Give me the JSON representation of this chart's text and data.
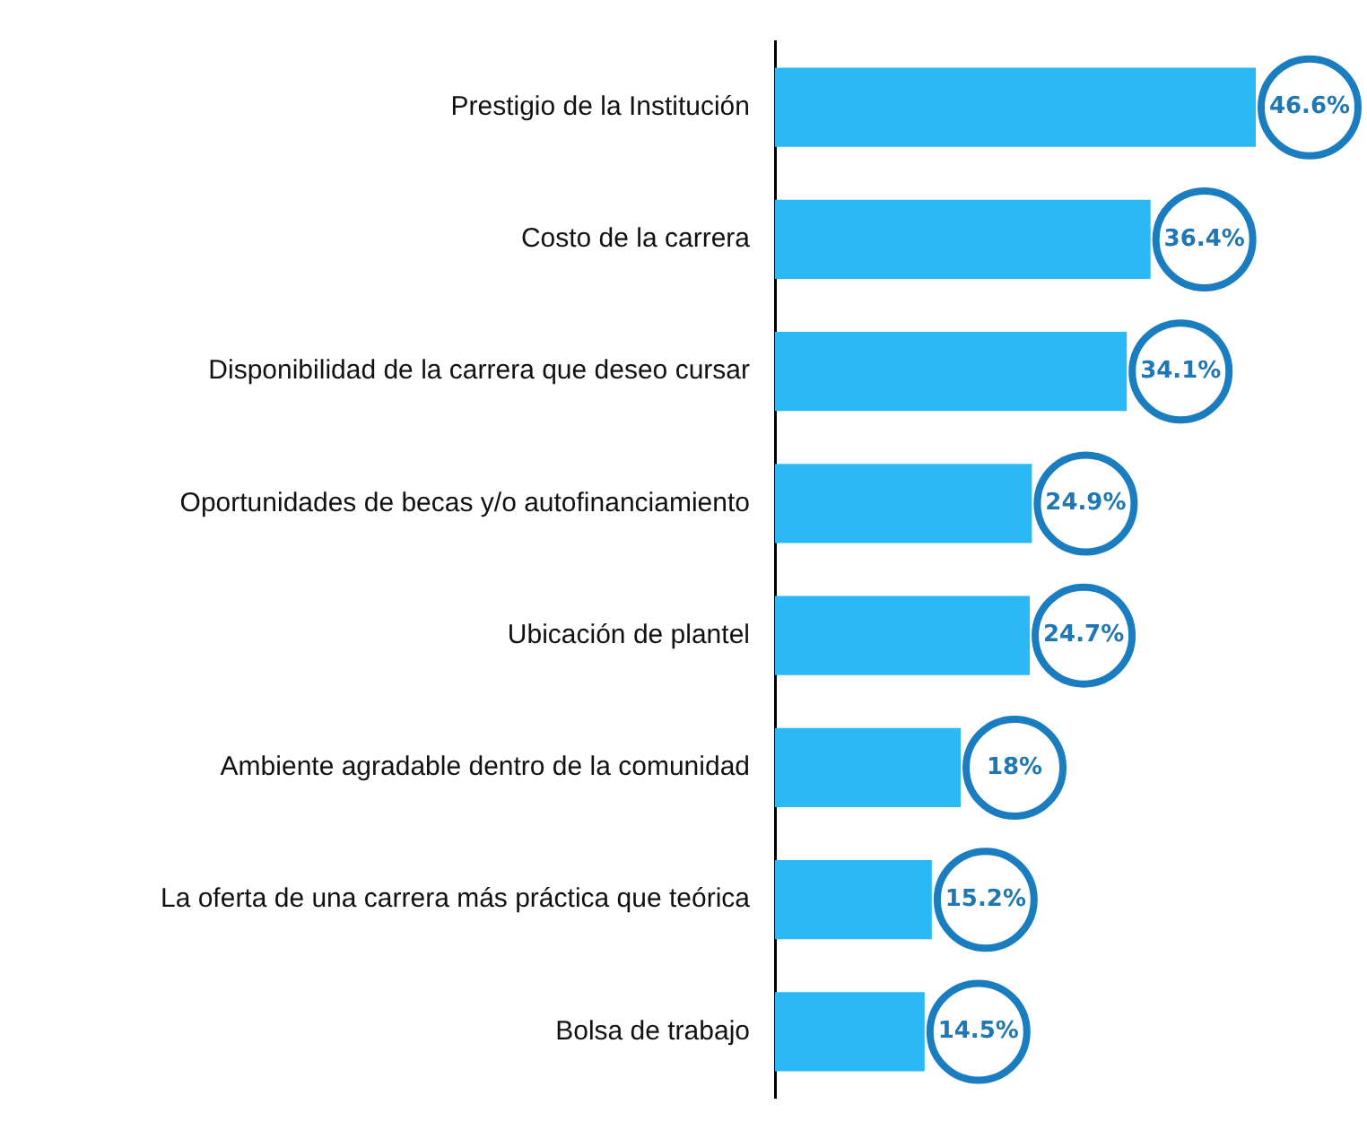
{
  "chart_data": {
    "type": "bar",
    "orientation": "horizontal",
    "categories": [
      "Prestigio de la Institución",
      "Costo de la carrera",
      "Disponibilidad de la carrera que deseo cursar",
      "Oportunidades de becas y/o autofinanciamiento",
      "Ubicación de plantel",
      "Ambiente agradable dentro de la comunidad",
      "La oferta de una carrera más práctica que teórica",
      "Bolsa de trabajo"
    ],
    "values": [
      46.6,
      36.4,
      34.1,
      24.9,
      24.7,
      18,
      15.2,
      14.5
    ],
    "value_labels": [
      "46.6%",
      "36.4%",
      "34.1%",
      "24.9%",
      "24.7%",
      "18%",
      "15.2%",
      "14.5%"
    ],
    "color": "#2bb9f5"
  }
}
